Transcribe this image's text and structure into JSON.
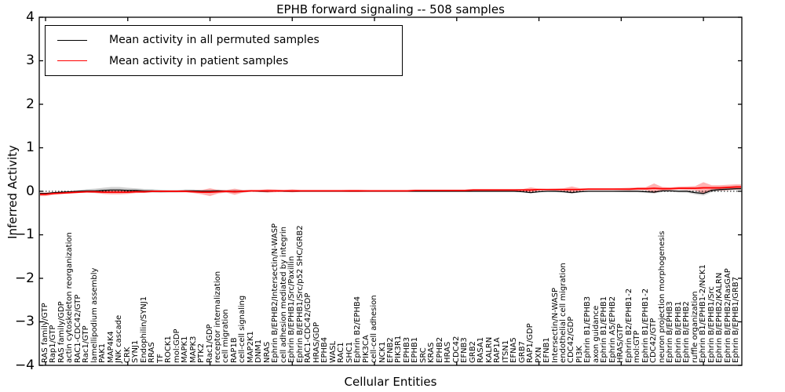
{
  "title": "EPHB forward signaling -- 508 samples",
  "axes": {
    "xlabel": "Cellular Entities",
    "ylabel": "Inferred Activity",
    "ytick_labels": [
      "4",
      "3",
      "2",
      "1",
      "0",
      "−1",
      "−2",
      "−3",
      "−4"
    ]
  },
  "legend": {
    "items": [
      {
        "label": "Mean activity in all permuted samples",
        "color": "#000000"
      },
      {
        "label": "Mean activity in patient samples",
        "color": "#ff0000"
      }
    ]
  },
  "chart_data": {
    "type": "line",
    "title": "EPHB forward signaling -- 508 samples",
    "xlabel": "Cellular Entities",
    "ylabel": "Inferred Activity",
    "ylim": [
      -4,
      4
    ],
    "yticks": [
      -4,
      -3,
      -2,
      -1,
      0,
      1,
      2,
      3,
      4
    ],
    "grid": false,
    "legend_position": "upper left",
    "zero_line": {
      "style": "dotted",
      "color": "#000000",
      "value": 0
    },
    "categories": [
      "RAS family/GTP",
      "Rap1/GTP",
      "RAS family/GDP",
      "actin cytoskeleton reorganization",
      "RAC1-CDC42/GTP",
      "Rac1/GTP",
      "lamellipodium assembly",
      "PAK1",
      "MAP4K4",
      "JNK cascade",
      "CRK",
      "SYNJ1",
      "Endophilin/SYNJ1",
      "RRAS",
      "TF",
      "ROCK1",
      "mol:GDP",
      "MAPK1",
      "MAPK3",
      "PTK2",
      "Rac1/GDP",
      "receptor internalization",
      "cell migration",
      "RAP1B",
      "cell-cell signaling",
      "MAP2K1",
      "DNM1",
      "NRAS",
      "Ephrin B/EPHB2/Intersectin/N-WASP",
      "cell adhesion mediated by integrin",
      "Ephrin B/EPHB1/Src/Paxillin",
      "Ephrin B/EPHB1/Src/p52 SHC/GRB2",
      "RAC1-CDC42/GDP",
      "HRAS/GDP",
      "EPHB4",
      "WASL",
      "RAC1",
      "SHC1",
      "Ephrin B2/EPHB4",
      "PIK3CA",
      "cell-cell adhesion",
      "NCK1",
      "EFNB2",
      "PIK3R1",
      "EPHB3",
      "EPHB1",
      "SRC",
      "KRAS",
      "EPHB2",
      "HRAS",
      "CDC42",
      "EFNB3",
      "GRB2",
      "RASA1",
      "KALRN",
      "RAP1A",
      "ITSN1",
      "EFNA5",
      "GRB7",
      "RAP1/GDP",
      "PXN",
      "EFNB1",
      "Intersectin/N-WASP",
      "endothelial cell migration",
      "CDC42/GDP",
      "PI3K",
      "Ephrin B1/EPHB3",
      "axon guidance",
      "Ephrin B1/EPHB1",
      "Ephrin A5/EPHB2",
      "HRAS/GTP",
      "Ephrin B2/EPHB1-2",
      "mol:GTP",
      "Ephrin B1/EPHB1-2",
      "CDC42/GTP",
      "neuron projection morphogenesis",
      "Ephrin B/EPHB3",
      "Ephrin B/EPHB1",
      "Ephrin B/EPHB2",
      "ruffle organization",
      "Ephrin B1/EPHB1-2/NCK1",
      "Ephrin B/EPHB1/Src",
      "Ephrin B/EPHB2/KALRN",
      "Ephrin B/EPHB2/RasGAP",
      "Ephrin B/EPHB1/GRB7"
    ],
    "series": [
      {
        "name": "Mean activity in all permuted samples",
        "color": "#000000",
        "band_color": "rgba(0,0,0,0.18)",
        "values": [
          -0.05,
          -0.03,
          -0.02,
          -0.01,
          0,
          0.01,
          0.01,
          0.02,
          0.03,
          0.03,
          0.02,
          0.02,
          0.01,
          0.01,
          0,
          0,
          0,
          0.01,
          0.01,
          0,
          0,
          0.01,
          0,
          0,
          0,
          0.01,
          0,
          0,
          0.01,
          0,
          0,
          0,
          0,
          0,
          0,
          0,
          0,
          0,
          0,
          0,
          0,
          0,
          0,
          0,
          0,
          0,
          0,
          0,
          0,
          0,
          0,
          0,
          0,
          0,
          0,
          0,
          0,
          0,
          -0.01,
          -0.03,
          -0.01,
          0,
          0,
          -0.01,
          -0.03,
          -0.01,
          0,
          0,
          0,
          0,
          0,
          0,
          0,
          -0.01,
          -0.02,
          0.01,
          0.01,
          0,
          0,
          -0.03,
          -0.05,
          0.02,
          0.04,
          0.05,
          0.06
        ],
        "band": [
          0.01,
          0.015,
          0.015,
          0.02,
          0.03,
          0.04,
          0.05,
          0.06,
          0.07,
          0.07,
          0.06,
          0.05,
          0.045,
          0.04,
          0.035,
          0.03,
          0.03,
          0.03,
          0.03,
          0.035,
          0.04,
          0.03,
          0.03,
          0.035,
          0.03,
          0.02,
          0.02,
          0.025,
          0.02,
          0.015,
          0.015,
          0.01,
          0.01,
          0.01,
          0.01,
          0.01,
          0.01,
          0.01,
          0.01,
          0.01,
          0.01,
          0.01,
          0.01,
          0.01,
          0.01,
          0.01,
          0.01,
          0.01,
          0.01,
          0.01,
          0.01,
          0.01,
          0.01,
          0.01,
          0.01,
          0.01,
          0.01,
          0.01,
          0.015,
          0.02,
          0.015,
          0.01,
          0.015,
          0.02,
          0.025,
          0.015,
          0.01,
          0.01,
          0.01,
          0.01,
          0.015,
          0.02,
          0.02,
          0.025,
          0.03,
          0.025,
          0.02,
          0.025,
          0.03,
          0.04,
          0.05,
          0.04,
          0.035,
          0.03,
          0.03
        ]
      },
      {
        "name": "Mean activity in patient samples",
        "color": "#ff0000",
        "band_color": "rgba(255,0,0,0.30)",
        "values": [
          -0.07,
          -0.05,
          -0.04,
          -0.03,
          -0.02,
          -0.01,
          -0.01,
          -0.02,
          -0.02,
          -0.02,
          -0.02,
          -0.01,
          -0.01,
          0,
          0,
          0,
          0,
          0,
          -0.01,
          -0.02,
          -0.02,
          -0.01,
          0,
          -0.01,
          0,
          0.01,
          0.01,
          0.01,
          0.01,
          0.01,
          0.01,
          0.01,
          0.01,
          0.01,
          0.01,
          0.01,
          0.01,
          0.01,
          0.01,
          0.01,
          0.01,
          0.01,
          0.01,
          0.01,
          0.01,
          0.02,
          0.02,
          0.02,
          0.02,
          0.02,
          0.02,
          0.02,
          0.03,
          0.03,
          0.03,
          0.03,
          0.03,
          0.03,
          0.03,
          0.03,
          0.04,
          0.04,
          0.04,
          0.04,
          0.04,
          0.04,
          0.05,
          0.05,
          0.05,
          0.05,
          0.05,
          0.05,
          0.06,
          0.06,
          0.07,
          0.06,
          0.06,
          0.07,
          0.07,
          0.07,
          0.08,
          0.08,
          0.08,
          0.09,
          0.1
        ],
        "band": [
          0.04,
          0.03,
          0.025,
          0.02,
          0.02,
          0.02,
          0.025,
          0.04,
          0.05,
          0.05,
          0.04,
          0.03,
          0.025,
          0.02,
          0.02,
          0.02,
          0.02,
          0.025,
          0.03,
          0.05,
          0.09,
          0.04,
          0.03,
          0.07,
          0.03,
          0.02,
          0.02,
          0.04,
          0.03,
          0.02,
          0.035,
          0.02,
          0.02,
          0.02,
          0.02,
          0.02,
          0.02,
          0.025,
          0.025,
          0.02,
          0.015,
          0.015,
          0.015,
          0.015,
          0.015,
          0.015,
          0.015,
          0.015,
          0.015,
          0.015,
          0.015,
          0.015,
          0.015,
          0.015,
          0.015,
          0.015,
          0.015,
          0.015,
          0.02,
          0.06,
          0.02,
          0.015,
          0.02,
          0.03,
          0.07,
          0.03,
          0.02,
          0.02,
          0.02,
          0.02,
          0.025,
          0.03,
          0.03,
          0.035,
          0.11,
          0.04,
          0.03,
          0.035,
          0.04,
          0.05,
          0.13,
          0.06,
          0.06,
          0.06,
          0.06
        ]
      }
    ]
  }
}
